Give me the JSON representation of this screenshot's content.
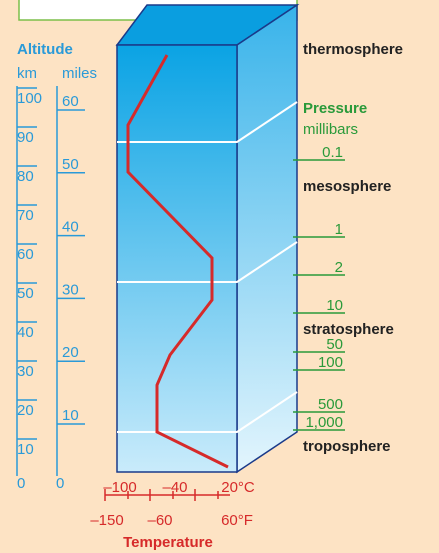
{
  "altitude": {
    "title": "Altitude",
    "km_label": "km",
    "miles_label": "miles",
    "km_ticks": [
      "100",
      "90",
      "80",
      "70",
      "60",
      "50",
      "40",
      "30",
      "20",
      "10",
      "0"
    ],
    "miles_ticks": [
      "60",
      "50",
      "40",
      "30",
      "20",
      "10",
      "0"
    ]
  },
  "layers": [
    "thermosphere",
    "mesosphere",
    "stratosphere",
    "troposphere"
  ],
  "pressure": {
    "title": "Pressure",
    "unit": "millibars",
    "ticks": [
      "0.1",
      "1",
      "2",
      "10",
      "50",
      "100",
      "500",
      "1,000"
    ]
  },
  "temperature": {
    "celsius": [
      "–100",
      "–40",
      "20°C"
    ],
    "fahrenheit": [
      "–150",
      "–60",
      "60°F"
    ],
    "title": "Temperature"
  }
}
